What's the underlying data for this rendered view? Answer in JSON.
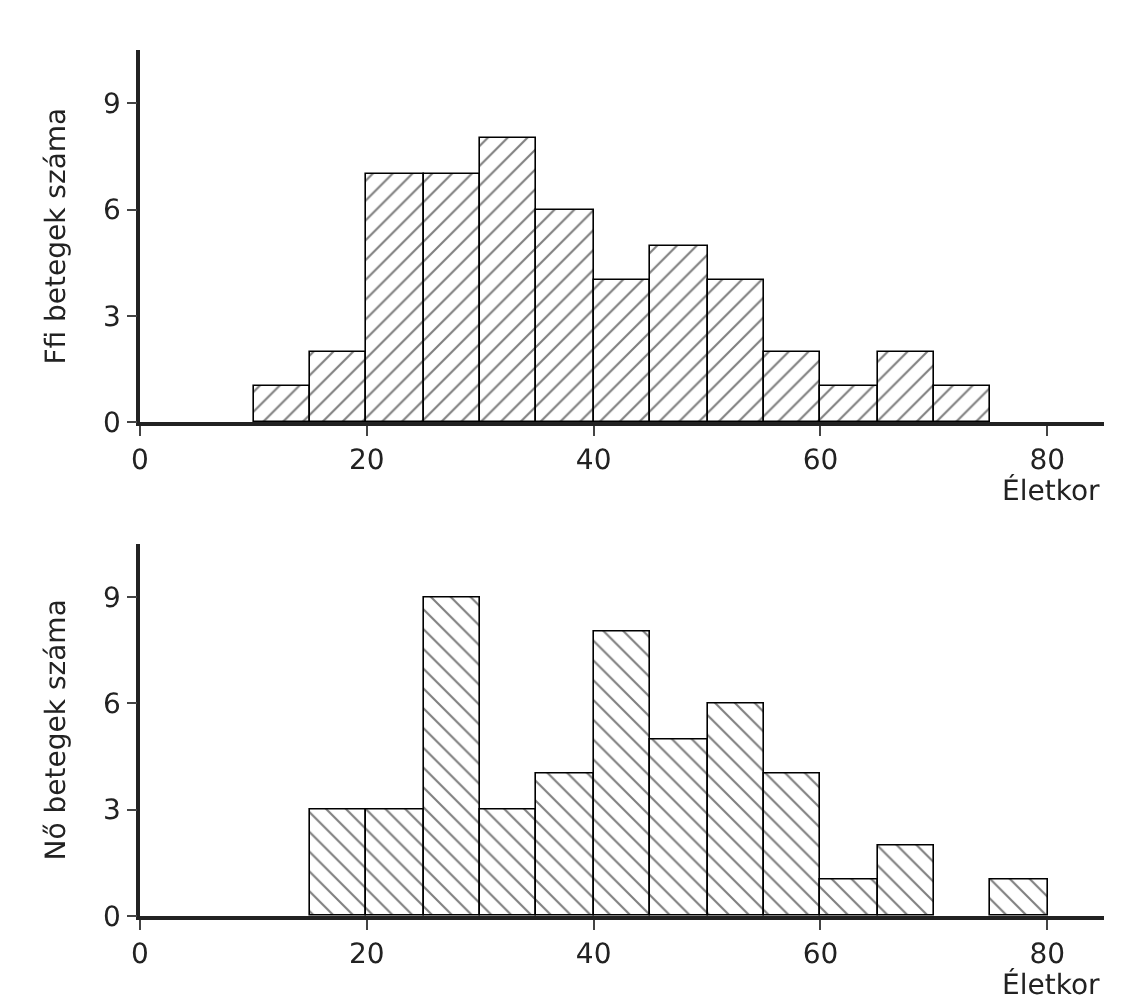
{
  "chart_data": [
    {
      "type": "histogram",
      "ylabel": "Ffi betegek száma",
      "xlabel": "Életkor",
      "bins": [
        10,
        15,
        20,
        25,
        30,
        35,
        40,
        45,
        50,
        55,
        60,
        65,
        70,
        75
      ],
      "values": [
        1,
        2,
        7,
        7,
        8,
        6,
        4,
        5,
        4,
        2,
        1,
        2,
        1
      ],
      "color": "#000000",
      "xlim": [
        0,
        85
      ],
      "xticks": [
        0,
        20,
        40,
        60,
        80
      ],
      "ylim": [
        0,
        10.5
      ],
      "yticks": [
        0,
        3,
        6,
        9
      ]
    },
    {
      "type": "histogram",
      "ylabel": "Nő betegek száma",
      "xlabel": "Életkor",
      "bins": [
        15,
        20,
        25,
        30,
        35,
        40,
        45,
        50,
        55,
        60,
        65,
        70,
        75,
        80
      ],
      "values": [
        3,
        3,
        9,
        3,
        4,
        8,
        5,
        6,
        4,
        1,
        2,
        0,
        1
      ],
      "color": "#000000",
      "xlim": [
        0,
        85
      ],
      "xticks": [
        0,
        20,
        40,
        60,
        80
      ],
      "ylim": [
        0,
        10.5
      ],
      "yticks": [
        0,
        3,
        6,
        9
      ]
    }
  ]
}
